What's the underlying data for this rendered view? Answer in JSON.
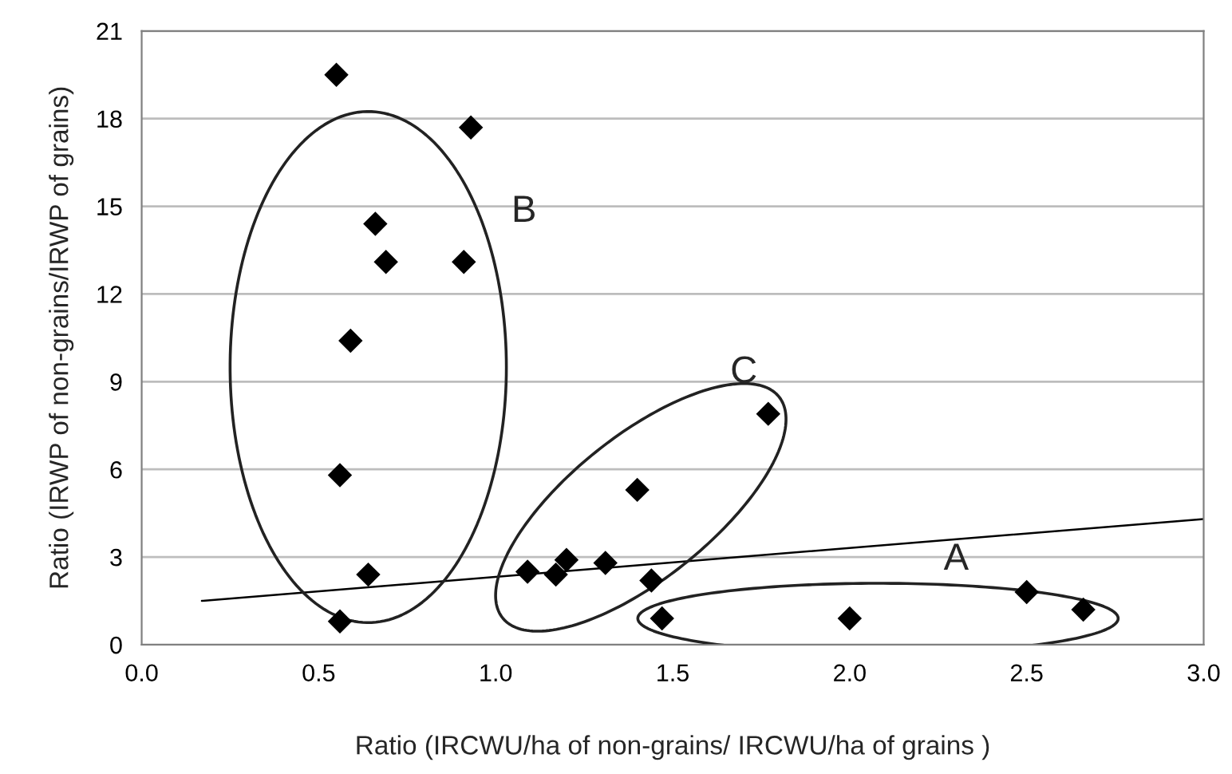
{
  "chart_data": {
    "type": "scatter",
    "xlabel": "Ratio (IRCWU/ha of non-grains/ IRCWU/ha of grains )",
    "ylabel": "Ratio (IRWP of non-grains/IRWP of grains)",
    "xlim": [
      0.0,
      3.0
    ],
    "ylim": [
      0,
      21
    ],
    "xticks": [
      {
        "value": 0.0,
        "label": "0.0"
      },
      {
        "value": 0.5,
        "label": "0.5"
      },
      {
        "value": 1.0,
        "label": "1.0"
      },
      {
        "value": 1.5,
        "label": "1.5"
      },
      {
        "value": 2.0,
        "label": "2.0"
      },
      {
        "value": 2.5,
        "label": "2.5"
      },
      {
        "value": 3.0,
        "label": "3.0"
      }
    ],
    "yticks": [
      0,
      3,
      6,
      9,
      12,
      15,
      18,
      21
    ],
    "grid": "y",
    "marker": "diamond",
    "series": [
      {
        "color": "#000000",
        "x": [
          0.55,
          0.93,
          0.66,
          0.69,
          0.91,
          0.59,
          0.56,
          0.64,
          0.56,
          1.09,
          1.17,
          1.2,
          1.31,
          1.4,
          1.44,
          1.77,
          1.47,
          2.0,
          2.5,
          2.66
        ],
        "values": [
          19.5,
          17.7,
          14.4,
          13.1,
          13.1,
          10.4,
          5.8,
          2.4,
          0.8,
          2.5,
          2.4,
          2.9,
          2.8,
          5.3,
          2.2,
          7.9,
          0.9,
          0.9,
          1.8,
          1.2
        ]
      },
      {
        "type": "line",
        "color": "#000000",
        "x": [
          0.17,
          3.0
        ],
        "values": [
          1.5,
          4.3
        ],
        "marker": "none",
        "line_style": "solid"
      }
    ],
    "annotations": [
      "B",
      "C",
      "A"
    ]
  }
}
